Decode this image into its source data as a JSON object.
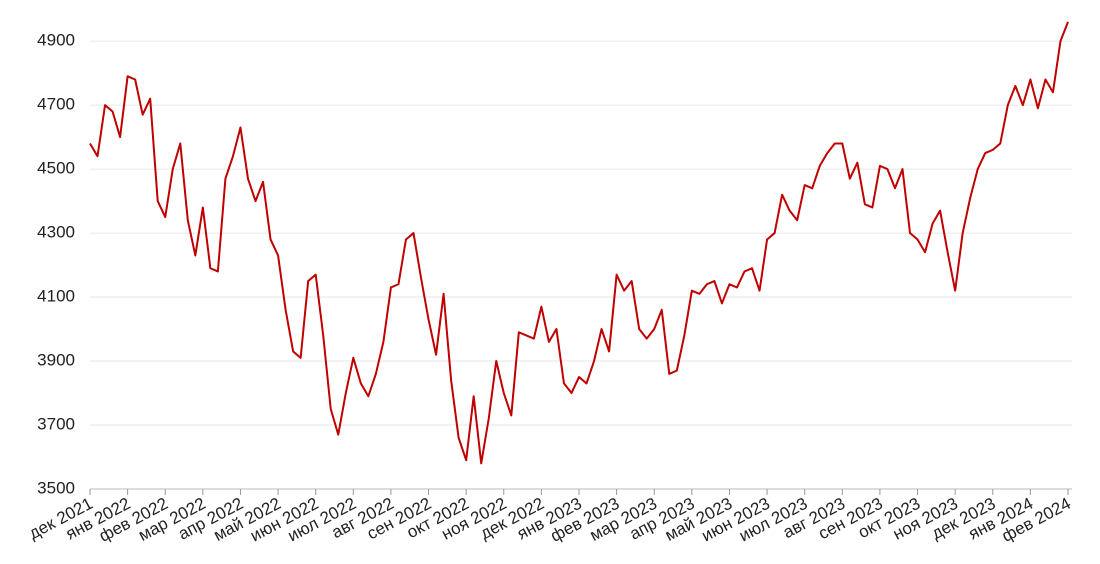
{
  "chart_data": {
    "type": "line",
    "x": [
      0,
      0.2,
      0.4,
      0.6,
      0.8,
      1,
      1.2,
      1.4,
      1.6,
      1.8,
      2,
      2.2,
      2.4,
      2.6,
      2.8,
      3,
      3.2,
      3.4,
      3.6,
      3.8,
      4,
      4.2,
      4.4,
      4.6,
      4.8,
      5,
      5.2,
      5.4,
      5.6,
      5.8,
      6,
      6.2,
      6.4,
      6.6,
      6.8,
      7,
      7.2,
      7.4,
      7.6,
      7.8,
      8,
      8.2,
      8.4,
      8.6,
      8.8,
      9,
      9.2,
      9.4,
      9.6,
      9.8,
      10,
      10.2,
      10.4,
      10.6,
      10.8,
      11,
      11.2,
      11.4,
      11.6,
      11.8,
      12,
      12.2,
      12.4,
      12.6,
      12.8,
      13,
      13.2,
      13.4,
      13.6,
      13.8,
      14,
      14.2,
      14.4,
      14.6,
      14.8,
      15,
      15.2,
      15.4,
      15.6,
      15.8,
      16,
      16.2,
      16.4,
      16.6,
      16.8,
      17,
      17.2,
      17.4,
      17.6,
      17.8,
      18,
      18.2,
      18.4,
      18.6,
      18.8,
      19,
      19.2,
      19.4,
      19.6,
      19.8,
      20,
      20.2,
      20.4,
      20.6,
      20.8,
      21,
      21.2,
      21.4,
      21.6,
      21.8,
      22,
      22.2,
      22.4,
      22.6,
      22.8,
      23,
      23.2,
      23.4,
      23.6,
      23.8,
      24,
      24.2,
      24.4,
      24.6,
      24.8,
      25,
      25.2,
      25.4,
      25.6,
      25.8,
      26
    ],
    "series": [
      {
        "color": "#c00000",
        "values": [
          4580,
          4540,
          4700,
          4680,
          4600,
          4790,
          4780,
          4670,
          4720,
          4400,
          4350,
          4500,
          4580,
          4340,
          4230,
          4380,
          4190,
          4180,
          4470,
          4540,
          4630,
          4470,
          4400,
          4460,
          4280,
          4230,
          4060,
          3930,
          3910,
          4150,
          4170,
          3980,
          3750,
          3670,
          3800,
          3910,
          3830,
          3790,
          3860,
          3960,
          4130,
          4140,
          4280,
          4300,
          4160,
          4030,
          3920,
          4110,
          3840,
          3660,
          3590,
          3790,
          3580,
          3720,
          3900,
          3800,
          3730,
          3990,
          3980,
          3970,
          4070,
          3960,
          4000,
          3830,
          3800,
          3850,
          3830,
          3900,
          4000,
          3930,
          4170,
          4120,
          4150,
          4000,
          3970,
          4000,
          4060,
          3860,
          3870,
          3980,
          4120,
          4110,
          4140,
          4150,
          4080,
          4140,
          4130,
          4180,
          4190,
          4120,
          4280,
          4300,
          4420,
          4370,
          4340,
          4450,
          4440,
          4510,
          4550,
          4580,
          4580,
          4470,
          4520,
          4390,
          4380,
          4510,
          4500,
          4440,
          4500,
          4300,
          4280,
          4240,
          4330,
          4370,
          4240,
          4120,
          4300,
          4410,
          4500,
          4550,
          4560,
          4580,
          4700,
          4760,
          4700,
          4780,
          4690,
          4780,
          4740,
          4900,
          4960
        ]
      }
    ],
    "xlim": [
      0,
      26
    ],
    "xticks": [
      {
        "value": 0,
        "label": "дек 2021"
      },
      {
        "value": 1,
        "label": "янв 2022"
      },
      {
        "value": 2,
        "label": "фев 2022"
      },
      {
        "value": 3,
        "label": "мар 2022"
      },
      {
        "value": 4,
        "label": "апр 2022"
      },
      {
        "value": 5,
        "label": "май 2022"
      },
      {
        "value": 6,
        "label": "июн 2022"
      },
      {
        "value": 7,
        "label": "июл 2022"
      },
      {
        "value": 8,
        "label": "авг 2022"
      },
      {
        "value": 9,
        "label": "сен 2022"
      },
      {
        "value": 10,
        "label": "окт 2022"
      },
      {
        "value": 11,
        "label": "ноя 2022"
      },
      {
        "value": 12,
        "label": "дек 2022"
      },
      {
        "value": 13,
        "label": "янв 2023"
      },
      {
        "value": 14,
        "label": "фев 2023"
      },
      {
        "value": 15,
        "label": "мар 2023"
      },
      {
        "value": 16,
        "label": "апр 2023"
      },
      {
        "value": 17,
        "label": "май 2023"
      },
      {
        "value": 18,
        "label": "июн 2023"
      },
      {
        "value": 19,
        "label": "июл 2023"
      },
      {
        "value": 20,
        "label": "авг 2023"
      },
      {
        "value": 21,
        "label": "сен 2023"
      },
      {
        "value": 22,
        "label": "окт 2023"
      },
      {
        "value": 23,
        "label": "ноя 2023"
      },
      {
        "value": 24,
        "label": "дек 2023"
      },
      {
        "value": 25,
        "label": "янв 2024"
      },
      {
        "value": 26,
        "label": "фев 2024"
      }
    ],
    "ylim": [
      3500,
      4966
    ],
    "yticks": [
      3500,
      3700,
      3900,
      4100,
      4300,
      4500,
      4700,
      4900
    ],
    "grid": true
  }
}
